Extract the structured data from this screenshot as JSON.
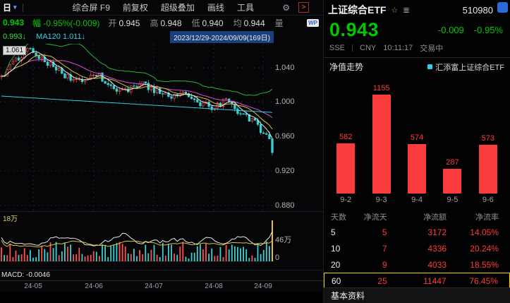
{
  "colors": {
    "up_green": "#00c800",
    "flow_red": "#fb3c3c",
    "highlight_yellow": "#ffd400",
    "ma_cyan": "#35cfe0"
  },
  "toolbar": {
    "period_label": "日",
    "menu_items": [
      "综合屏 F9",
      "前复权",
      "超级叠加",
      "画线",
      "工具"
    ],
    "expand_button": ">"
  },
  "quote_bar": {
    "price": "0.943",
    "amp_label": "幅",
    "amp_value": "-0.95%(-0.009)",
    "fields": [
      {
        "label": "开",
        "value": "0.945"
      },
      {
        "label": "高",
        "value": "0.948"
      },
      {
        "label": "低",
        "value": "0.940"
      },
      {
        "label": "均",
        "value": "0.944"
      },
      {
        "label": "量",
        "value": ""
      }
    ],
    "badge": "WP"
  },
  "ma_bar": {
    "ma60_value": "0.993↓",
    "ma120_value": "MA120 1.011↓",
    "date_range": "2023/12/29-2024/09/09(169日)"
  },
  "main_chart": {
    "peak_label": "1.061",
    "y_ticks": [
      "1.040",
      "1.000",
      "0.960",
      "0.920",
      "0.880"
    ],
    "x_ticks": [
      "24-05",
      "24-06",
      "24-07",
      "24-08",
      "24-09"
    ],
    "volume_max_label": "18万",
    "volume_axis_mid": "46万",
    "volume_axis_zero": "0",
    "indicator_label": "MACD: -0.0046"
  },
  "chart_data": [
    {
      "type": "candlestick",
      "title": "510980 上证综合ETF 日K",
      "x_range_label": "2023/12/29-2024/09/09(169日)",
      "visible_months": [
        "24-05",
        "24-06",
        "24-07",
        "24-08",
        "24-09"
      ],
      "y_axis_ticks": [
        0.88,
        0.92,
        0.96,
        1.0,
        1.04
      ],
      "y_min": 0.875,
      "y_max": 1.068,
      "period_high": 1.061,
      "last_close": 0.943,
      "candle_count": 95,
      "close_anchors": [
        [
          0,
          1.03
        ],
        [
          5,
          1.048
        ],
        [
          9,
          1.061
        ],
        [
          13,
          1.052
        ],
        [
          18,
          1.042
        ],
        [
          23,
          1.03
        ],
        [
          28,
          1.026
        ],
        [
          33,
          1.034
        ],
        [
          38,
          1.02
        ],
        [
          43,
          1.013
        ],
        [
          48,
          1.024
        ],
        [
          53,
          1.015
        ],
        [
          58,
          1.007
        ],
        [
          63,
          1.013
        ],
        [
          68,
          1.001
        ],
        [
          73,
          0.995
        ],
        [
          78,
          1.003
        ],
        [
          83,
          0.989
        ],
        [
          88,
          0.977
        ],
        [
          91,
          0.966
        ],
        [
          94,
          0.952
        ]
      ]
    },
    {
      "type": "bar",
      "title": "净值走势",
      "categories": [
        "9-2",
        "9-3",
        "9-4",
        "9-5",
        "9-6"
      ],
      "values": [
        582,
        1155,
        574,
        287,
        573
      ],
      "bar_color": "#fb3c3c",
      "ylim": [
        0,
        1250
      ],
      "legend": "汇添富上证综合ETF"
    }
  ],
  "panel": {
    "title": "上证综合ETF",
    "code": "510980",
    "price": "0.943",
    "change": "-0.009",
    "change_pct": "-0.95%",
    "exchange": "SSE",
    "currency": "CNY",
    "time": "10:11:17",
    "status": "交易中",
    "section_title": "净值走势",
    "fund_name": "汇添富上证综合ETF",
    "flow_table": {
      "headers": [
        "天数",
        "净流天",
        "净流额",
        "净流率"
      ],
      "rows": [
        {
          "days": "5",
          "net_days": "5",
          "net_amount": "3172",
          "net_rate": "14.05%"
        },
        {
          "days": "10",
          "net_days": "7",
          "net_amount": "4336",
          "net_rate": "20.24%"
        },
        {
          "days": "20",
          "net_days": "9",
          "net_amount": "4033",
          "net_rate": "18.55%"
        },
        {
          "days": "60",
          "net_days": "25",
          "net_amount": "11447",
          "net_rate": "76.45%"
        }
      ],
      "highlighted_row_index": 3
    },
    "footer_tab": "基本资料"
  }
}
